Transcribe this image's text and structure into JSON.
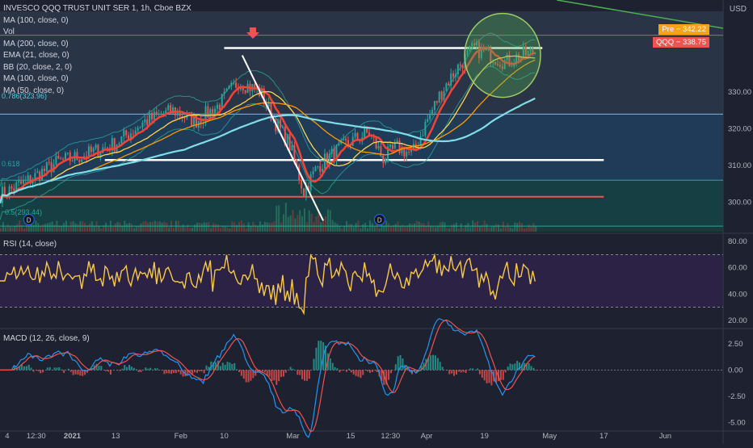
{
  "header": {
    "symbol_line": "INVESCO QQQ TRUST UNIT SER 1, 1h, Cboe BZX",
    "currency": "USD"
  },
  "legend": [
    "MA (100, close, 0)",
    "Vol",
    "MA (200, close, 0)",
    "EMA (21, close, 0)",
    "BB (20, close, 2, 0)",
    "MA (100, close, 0)",
    "MA (50, close, 0)"
  ],
  "price_badges": {
    "pre_label": "Pre",
    "pre_value": "342.22",
    "last_label": "QQQ",
    "last_value": "338.75",
    "pre_color": "#f7a21b",
    "last_color": "#ef5350"
  },
  "fib_labels": {
    "f786": "0.786(323.96)",
    "f618": "0.618",
    "f5": "0.5(293.44)"
  },
  "chart_data": [
    {
      "type": "line",
      "title": "INVESCO QQQ TRUST UNIT SER 1, 1h, Cboe BZX",
      "ylim": [
        292,
        352
      ],
      "yticks": [
        300,
        310,
        320,
        330
      ],
      "ytick_labels": [
        "300.00",
        "310.00",
        "320.00",
        "330.00"
      ],
      "x_tick_labels": [
        "4",
        "12:30",
        "2021",
        "13",
        "Feb",
        "10",
        "Mar",
        "15",
        "12:30",
        "Apr",
        "19",
        "May",
        "17",
        "Jun"
      ],
      "x_tick_positions": [
        0.01,
        0.05,
        0.1,
        0.16,
        0.25,
        0.31,
        0.405,
        0.485,
        0.54,
        0.59,
        0.67,
        0.76,
        0.835,
        0.92
      ],
      "price_anchors": [
        [
          0,
          302
        ],
        [
          0.04,
          306
        ],
        [
          0.08,
          311
        ],
        [
          0.12,
          313
        ],
        [
          0.16,
          316
        ],
        [
          0.2,
          322
        ],
        [
          0.24,
          325
        ],
        [
          0.27,
          322
        ],
        [
          0.3,
          326
        ],
        [
          0.33,
          333
        ],
        [
          0.36,
          330
        ],
        [
          0.38,
          322
        ],
        [
          0.4,
          316
        ],
        [
          0.42,
          303
        ],
        [
          0.44,
          310
        ],
        [
          0.46,
          313
        ],
        [
          0.48,
          316
        ],
        [
          0.51,
          319
        ],
        [
          0.53,
          312
        ],
        [
          0.55,
          315
        ],
        [
          0.57,
          313
        ],
        [
          0.59,
          322
        ],
        [
          0.61,
          330
        ],
        [
          0.63,
          336
        ],
        [
          0.655,
          342
        ],
        [
          0.68,
          340
        ],
        [
          0.7,
          338
        ],
        [
          0.72,
          340
        ],
        [
          0.74,
          341
        ]
      ],
      "series": [
        {
          "name": "EMA (21, close, 0)",
          "color": "#f44336"
        },
        {
          "name": "MA (50, close, 0)",
          "color": "#ffd54f"
        },
        {
          "name": "MA (100, close, 0)",
          "color": "#ff9800"
        },
        {
          "name": "MA (200, close, 0)",
          "color": "#80deea"
        }
      ],
      "horizontal_levels": [
        {
          "value": 342.0,
          "color": "#ffffff"
        },
        {
          "value": 311.5,
          "color": "#ffffff"
        },
        {
          "value": 324.0,
          "color": "#4dd0e1"
        },
        {
          "value": 306.0,
          "color": "#26a69a"
        },
        {
          "value": 301.5,
          "color": "#ef5350"
        },
        {
          "value": 293.5,
          "color": "#26a69a"
        },
        {
          "value": 345.5,
          "color": "#f7a21b"
        }
      ],
      "markers": {
        "arrow_label": "",
        "dividend_label": "D"
      }
    },
    {
      "type": "line",
      "title": "RSI (14, close)",
      "ylim": [
        15,
        85
      ],
      "yticks": [
        20,
        40,
        60,
        80
      ],
      "ytick_labels": [
        "20.00",
        "40.00",
        "60.00",
        "80.00"
      ],
      "band": [
        30,
        70
      ],
      "series": [
        {
          "name": "RSI (14, close)",
          "color": "#f7c948"
        }
      ]
    },
    {
      "type": "line",
      "title": "MACD (12, 26, close, 9)",
      "ylim": [
        -5.5,
        3.8
      ],
      "yticks": [
        -5,
        -2.5,
        0,
        2.5
      ],
      "ytick_labels": [
        "-5.00",
        "-2.50",
        "0.00",
        "2.50"
      ],
      "series": [
        {
          "name": "MACD",
          "color": "#2196f3"
        },
        {
          "name": "Signal",
          "color": "#ef5350"
        }
      ]
    }
  ]
}
